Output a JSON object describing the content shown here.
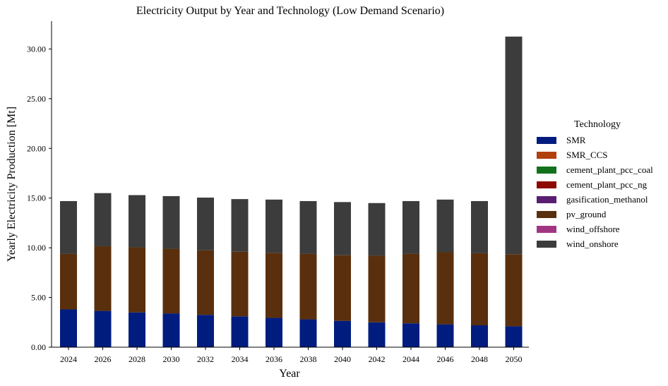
{
  "chart_data": {
    "type": "bar",
    "stacked": true,
    "title": "Electricity Output by Year and Technology (Low Demand Scenario)",
    "xlabel": "Year",
    "ylabel": "Yearly Electricity Production [Mt]",
    "ylim": [
      0,
      32.8
    ],
    "yticks": [
      "0.00",
      "5.00",
      "10.00",
      "15.00",
      "20.00",
      "25.00",
      "30.00"
    ],
    "categories": [
      "2024",
      "2026",
      "2028",
      "2030",
      "2032",
      "2034",
      "2036",
      "2038",
      "2040",
      "2042",
      "2044",
      "2046",
      "2048",
      "2050"
    ],
    "legend_title": "Technology",
    "legend_position": "right",
    "series": [
      {
        "name": "SMR",
        "color": "#001c7f",
        "values": [
          3.8,
          3.65,
          3.5,
          3.4,
          3.25,
          3.1,
          2.95,
          2.8,
          2.65,
          2.5,
          2.4,
          2.3,
          2.2,
          2.1
        ]
      },
      {
        "name": "SMR_CCS",
        "color": "#b1400d",
        "values": [
          0,
          0,
          0,
          0,
          0,
          0,
          0,
          0,
          0,
          0,
          0,
          0,
          0,
          0
        ]
      },
      {
        "name": "cement_plant_pcc_coal",
        "color": "#12711c",
        "values": [
          0,
          0,
          0,
          0,
          0,
          0,
          0,
          0,
          0,
          0,
          0,
          0,
          0,
          0
        ]
      },
      {
        "name": "cement_plant_pcc_ng",
        "color": "#8c0800",
        "values": [
          0,
          0,
          0,
          0,
          0,
          0,
          0,
          0,
          0,
          0,
          0,
          0,
          0,
          0
        ]
      },
      {
        "name": "gasification_methanol",
        "color": "#591e71",
        "values": [
          0,
          0,
          0,
          0,
          0,
          0,
          0,
          0,
          0,
          0,
          0,
          0,
          0,
          0
        ]
      },
      {
        "name": "pv_ground",
        "color": "#592f0d",
        "values": [
          5.6,
          6.5,
          6.55,
          6.5,
          6.5,
          6.5,
          6.55,
          6.6,
          6.6,
          6.7,
          7.0,
          7.25,
          7.25,
          7.25
        ]
      },
      {
        "name": "wind_offshore",
        "color": "#a23582",
        "values": [
          0,
          0,
          0,
          0,
          0,
          0,
          0,
          0,
          0,
          0,
          0,
          0,
          0,
          0
        ]
      },
      {
        "name": "wind_onshore",
        "color": "#3c3c3c",
        "values": [
          5.3,
          5.35,
          5.25,
          5.3,
          5.3,
          5.3,
          5.35,
          5.3,
          5.35,
          5.3,
          5.3,
          5.3,
          5.25,
          21.9
        ]
      }
    ]
  }
}
